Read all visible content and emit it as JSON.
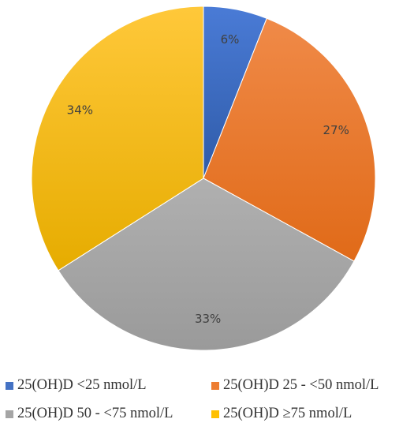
{
  "chart_data": {
    "type": "pie",
    "title": "",
    "legend_position": "bottom",
    "slices": [
      {
        "label": "25(OH)D <25 nmol/L",
        "value": 6,
        "display": "6%",
        "color": "#4472C4"
      },
      {
        "label": "25(OH)D 25 - <50 nmol/L",
        "value": 27,
        "display": "27%",
        "color": "#ED7D31"
      },
      {
        "label": "25(OH)D 50 - <75 nmol/L",
        "value": 33,
        "display": "33%",
        "color": "#A5A5A5"
      },
      {
        "label": "25(OH)D ≥75 nmol/L",
        "value": 34,
        "display": "34%",
        "color": "#FFC000"
      }
    ]
  }
}
